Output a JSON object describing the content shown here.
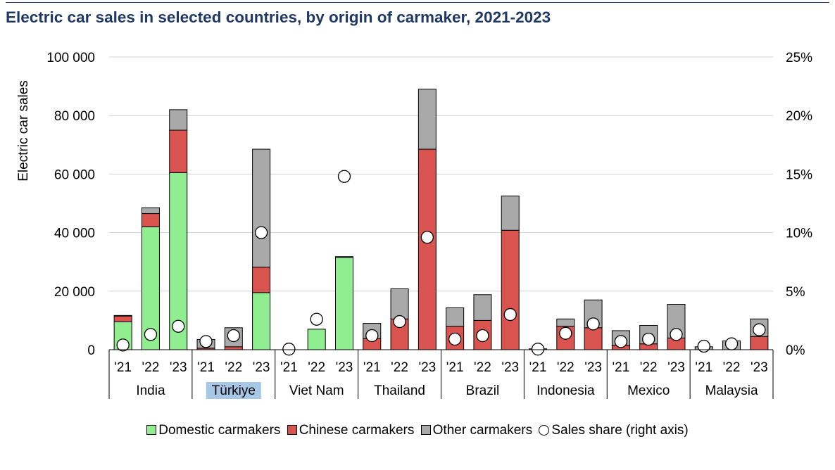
{
  "title": "Electric car sales in selected countries, by origin of carmaker, 2021-2023",
  "colors": {
    "domestic": "#90ee90",
    "chinese": "#d9534f",
    "other": "#a9a9a9",
    "share_fill": "#ffffff",
    "title": "#1f3864",
    "highlight": "#a7c7e7"
  },
  "chart_data": {
    "type": "bar",
    "stacked": true,
    "ylabel": "Electric car sales",
    "ylim": [
      0,
      100000
    ],
    "y_ticks": [
      "0",
      "20 000",
      "40 000",
      "60 000",
      "80 000",
      "100 000"
    ],
    "y2lim": [
      0,
      25
    ],
    "y2_ticks": [
      "0%",
      "5%",
      "10%",
      "15%",
      "20%",
      "25%"
    ],
    "countries": [
      "India",
      "Türkiye",
      "Viet Nam",
      "Thailand",
      "Brazil",
      "Indonesia",
      "Mexico",
      "Malaysia"
    ],
    "highlighted_country": "Türkiye",
    "years": [
      "'21",
      "'22",
      "'23"
    ],
    "series": [
      {
        "name": "Domestic carmakers",
        "values": [
          9500,
          42000,
          60500,
          0,
          0,
          19500,
          0,
          7000,
          31500,
          0,
          0,
          0,
          0,
          0,
          0,
          0,
          0,
          0,
          0,
          0,
          0,
          0,
          0,
          0
        ]
      },
      {
        "name": "Chinese carmakers",
        "values": [
          2000,
          4500,
          14500,
          500,
          1000,
          8700,
          0,
          0,
          0,
          3800,
          10500,
          68500,
          8000,
          10000,
          40800,
          300,
          8000,
          7500,
          1500,
          2000,
          4000,
          0,
          0,
          4500
        ]
      },
      {
        "name": "Other carmakers",
        "values": [
          200,
          2000,
          7000,
          3000,
          6500,
          40300,
          0,
          0,
          300,
          5200,
          10300,
          20500,
          6300,
          8800,
          11700,
          0,
          2500,
          9500,
          5000,
          6300,
          11500,
          1000,
          3000,
          6000
        ]
      }
    ],
    "sales_share": {
      "name": "Sales share (right axis)",
      "axis": "right",
      "unit": "%",
      "values": [
        0.4,
        1.3,
        2.0,
        0.7,
        1.2,
        10.0,
        0.05,
        2.6,
        14.8,
        1.2,
        2.4,
        9.6,
        0.9,
        1.2,
        3.0,
        0.05,
        1.4,
        2.2,
        0.7,
        0.9,
        1.3,
        0.3,
        0.5,
        1.7
      ]
    }
  },
  "legend": {
    "domestic": "Domestic carmakers",
    "chinese": "Chinese carmakers",
    "other": "Other carmakers",
    "share": "Sales share (right axis)"
  }
}
